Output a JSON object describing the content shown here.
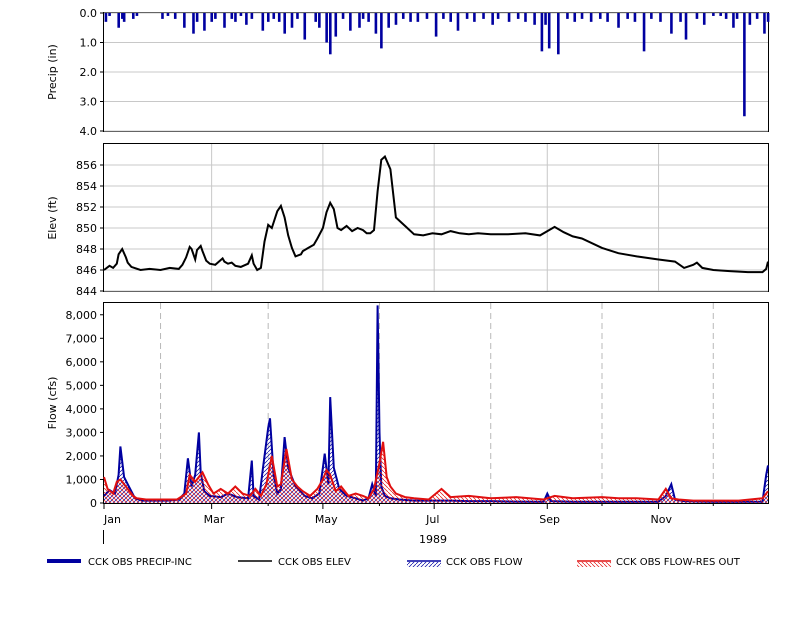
{
  "chart_data": [
    {
      "type": "bar",
      "ylabel": "Precip (in)",
      "ylim": [
        0,
        4
      ],
      "y_inverted": true,
      "yticks": [
        "0.0",
        "1.0",
        "2.0",
        "3.0",
        "4.0"
      ],
      "color": "#0000a0",
      "series": [
        {
          "name": "CCK OBS PRECIP-INC",
          "x": [
            "1989-01-02",
            "1989-01-04",
            "1989-01-09",
            "1989-01-11",
            "1989-01-12",
            "1989-01-17",
            "1989-01-19",
            "1989-02-02",
            "1989-02-05",
            "1989-02-09",
            "1989-02-14",
            "1989-02-19",
            "1989-02-21",
            "1989-02-25",
            "1989-03-01",
            "1989-03-03",
            "1989-03-08",
            "1989-03-12",
            "1989-03-14",
            "1989-03-17",
            "1989-03-20",
            "1989-03-23",
            "1989-03-29",
            "1989-04-01",
            "1989-04-04",
            "1989-04-07",
            "1989-04-10",
            "1989-04-14",
            "1989-04-17",
            "1989-04-21",
            "1989-04-27",
            "1989-04-29",
            "1989-05-03",
            "1989-05-05",
            "1989-05-08",
            "1989-05-12",
            "1989-05-16",
            "1989-05-21",
            "1989-05-23",
            "1989-05-26",
            "1989-05-30",
            "1989-06-02",
            "1989-06-06",
            "1989-06-10",
            "1989-06-14",
            "1989-06-18",
            "1989-06-22",
            "1989-06-27",
            "1989-07-02",
            "1989-07-06",
            "1989-07-10",
            "1989-07-14",
            "1989-07-19",
            "1989-07-23",
            "1989-07-28",
            "1989-08-02",
            "1989-08-05",
            "1989-08-11",
            "1989-08-16",
            "1989-08-20",
            "1989-08-25",
            "1989-08-29",
            "1989-08-31",
            "1989-09-02",
            "1989-09-07",
            "1989-09-12",
            "1989-09-16",
            "1989-09-20",
            "1989-09-25",
            "1989-09-30",
            "1989-10-04",
            "1989-10-10",
            "1989-10-15",
            "1989-10-19",
            "1989-10-24",
            "1989-10-28",
            "1989-11-02",
            "1989-11-08",
            "1989-11-13",
            "1989-11-16",
            "1989-11-22",
            "1989-11-26",
            "1989-12-01",
            "1989-12-05",
            "1989-12-08",
            "1989-12-12",
            "1989-12-14",
            "1989-12-18",
            "1989-12-21",
            "1989-12-25",
            "1989-12-29",
            "1989-12-31"
          ],
          "values": [
            0.3,
            0.1,
            0.5,
            0.2,
            0.3,
            0.2,
            0.1,
            0.2,
            0.1,
            0.2,
            0.5,
            0.7,
            0.3,
            0.6,
            0.3,
            0.2,
            0.5,
            0.2,
            0.3,
            0.1,
            0.4,
            0.2,
            0.6,
            0.3,
            0.2,
            0.3,
            0.7,
            0.5,
            0.2,
            0.9,
            0.3,
            0.5,
            1.0,
            1.4,
            0.8,
            0.2,
            0.6,
            0.5,
            0.2,
            0.3,
            0.7,
            1.2,
            0.5,
            0.4,
            0.2,
            0.3,
            0.3,
            0.2,
            0.8,
            0.2,
            0.3,
            0.6,
            0.2,
            0.3,
            0.2,
            0.4,
            0.2,
            0.3,
            0.2,
            0.3,
            0.4,
            1.3,
            0.4,
            1.2,
            1.4,
            0.2,
            0.3,
            0.2,
            0.3,
            0.2,
            0.3,
            0.5,
            0.2,
            0.3,
            1.3,
            0.2,
            0.3,
            0.7,
            0.3,
            0.9,
            0.2,
            0.4,
            0.1,
            0.1,
            0.2,
            0.5,
            0.2,
            3.5,
            0.4,
            0.2,
            0.7,
            0.3
          ]
        }
      ]
    },
    {
      "type": "line",
      "ylabel": "Elev (ft)",
      "ylim": [
        844,
        858
      ],
      "yticks": [
        "844",
        "846",
        "848",
        "850",
        "852",
        "854",
        "856"
      ],
      "series": [
        {
          "name": "CCK OBS ELEV",
          "color": "#000000",
          "x": [
            "1989-01-01",
            "1989-01-04",
            "1989-01-06",
            "1989-01-08",
            "1989-01-09",
            "1989-01-11",
            "1989-01-13",
            "1989-01-14",
            "1989-01-16",
            "1989-01-21",
            "1989-01-26",
            "1989-02-01",
            "1989-02-06",
            "1989-02-11",
            "1989-02-13",
            "1989-02-15",
            "1989-02-17",
            "1989-02-18",
            "1989-02-20",
            "1989-02-21",
            "1989-02-23",
            "1989-02-24",
            "1989-02-26",
            "1989-02-28",
            "1989-03-03",
            "1989-03-05",
            "1989-03-07",
            "1989-03-08",
            "1989-03-10",
            "1989-03-12",
            "1989-03-14",
            "1989-03-17",
            "1989-03-21",
            "1989-03-23",
            "1989-03-24",
            "1989-03-26",
            "1989-03-28",
            "1989-03-30",
            "1989-04-01",
            "1989-04-03",
            "1989-04-06",
            "1989-04-08",
            "1989-04-10",
            "1989-04-12",
            "1989-04-14",
            "1989-04-16",
            "1989-04-19",
            "1989-04-20",
            "1989-04-23",
            "1989-04-26",
            "1989-04-28",
            "1989-05-01",
            "1989-05-03",
            "1989-05-05",
            "1989-05-07",
            "1989-05-09",
            "1989-05-11",
            "1989-05-14",
            "1989-05-17",
            "1989-05-20",
            "1989-05-23",
            "1989-05-25",
            "1989-05-27",
            "1989-05-29",
            "1989-05-31",
            "1989-06-02",
            "1989-06-04",
            "1989-06-07",
            "1989-06-10",
            "1989-06-15",
            "1989-06-20",
            "1989-06-25",
            "1989-06-30",
            "1989-07-05",
            "1989-07-10",
            "1989-07-15",
            "1989-07-20",
            "1989-07-25",
            "1989-08-01",
            "1989-08-10",
            "1989-08-20",
            "1989-08-28",
            "1989-09-02",
            "1989-09-05",
            "1989-09-10",
            "1989-09-15",
            "1989-09-20",
            "1989-10-01",
            "1989-10-10",
            "1989-10-20",
            "1989-11-01",
            "1989-11-10",
            "1989-11-15",
            "1989-11-20",
            "1989-11-22",
            "1989-11-25",
            "1989-12-01",
            "1989-12-10",
            "1989-12-20",
            "1989-12-28",
            "1989-12-30",
            "1989-12-31"
          ],
          "values": [
            846.0,
            846.4,
            846.2,
            846.6,
            847.5,
            848.0,
            847.2,
            846.7,
            846.3,
            846.0,
            846.1,
            846.0,
            846.2,
            846.1,
            846.5,
            847.2,
            848.2,
            848.0,
            847.0,
            847.9,
            848.3,
            847.8,
            846.9,
            846.6,
            846.5,
            846.8,
            847.1,
            846.8,
            846.6,
            846.7,
            846.4,
            846.3,
            846.6,
            847.4,
            846.6,
            846.0,
            846.2,
            848.7,
            850.3,
            850.0,
            851.6,
            852.1,
            851.0,
            849.3,
            848.1,
            847.3,
            847.5,
            847.8,
            848.1,
            848.4,
            849.0,
            850.0,
            851.5,
            852.4,
            851.8,
            850.0,
            849.8,
            850.2,
            849.7,
            850.0,
            849.8,
            849.5,
            849.5,
            849.8,
            853.5,
            856.5,
            856.8,
            855.6,
            851.0,
            850.2,
            849.4,
            849.3,
            849.5,
            849.4,
            849.7,
            849.5,
            849.4,
            849.5,
            849.4,
            849.4,
            849.5,
            849.3,
            849.8,
            850.1,
            849.6,
            849.2,
            849.0,
            848.1,
            847.6,
            847.3,
            847.0,
            846.8,
            846.2,
            846.5,
            846.7,
            846.2,
            846.0,
            845.9,
            845.8,
            845.8,
            846.1,
            846.8
          ]
        }
      ]
    },
    {
      "type": "line",
      "ylabel": "Flow (cfs)",
      "xlabel": "1989",
      "ylim": [
        0,
        8500
      ],
      "yticks": [
        "0",
        "1,000",
        "2,000",
        "3,000",
        "4,000",
        "5,000",
        "6,000",
        "7,000",
        "8,000"
      ],
      "xticks": [
        "Jan",
        "Mar",
        "May",
        "Jul",
        "Sep",
        "Nov"
      ],
      "series": [
        {
          "name": "CCK OBS FLOW",
          "color": "#0000a0",
          "x": [
            "1989-01-01",
            "1989-01-04",
            "1989-01-07",
            "1989-01-09",
            "1989-01-10",
            "1989-01-12",
            "1989-01-14",
            "1989-01-18",
            "1989-01-22",
            "1989-01-28",
            "1989-02-05",
            "1989-02-11",
            "1989-02-14",
            "1989-02-16",
            "1989-02-18",
            "1989-02-20",
            "1989-02-22",
            "1989-02-23",
            "1989-02-25",
            "1989-02-28",
            "1989-03-06",
            "1989-03-10",
            "1989-03-15",
            "1989-03-21",
            "1989-03-23",
            "1989-03-24",
            "1989-03-27",
            "1989-03-29",
            "1989-04-01",
            "1989-04-02",
            "1989-04-04",
            "1989-04-06",
            "1989-04-08",
            "1989-04-10",
            "1989-04-12",
            "1989-04-16",
            "1989-04-21",
            "1989-04-25",
            "1989-04-29",
            "1989-05-01",
            "1989-05-02",
            "1989-05-04",
            "1989-05-05",
            "1989-05-07",
            "1989-05-10",
            "1989-05-14",
            "1989-05-19",
            "1989-05-23",
            "1989-05-26",
            "1989-05-28",
            "1989-05-30",
            "1989-05-31",
            "1989-06-01",
            "1989-06-02",
            "1989-06-04",
            "1989-06-07",
            "1989-06-12",
            "1989-06-20",
            "1989-07-01",
            "1989-07-10",
            "1989-07-20",
            "1989-08-01",
            "1989-08-15",
            "1989-08-30",
            "1989-09-01",
            "1989-09-03",
            "1989-09-15",
            "1989-10-01",
            "1989-10-15",
            "1989-11-01",
            "1989-11-05",
            "1989-11-08",
            "1989-11-10",
            "1989-11-15",
            "1989-12-01",
            "1989-12-15",
            "1989-12-28",
            "1989-12-30",
            "1989-12-31"
          ],
          "values": [
            300,
            550,
            400,
            1200,
            2400,
            1100,
            800,
            200,
            100,
            100,
            100,
            150,
            400,
            1900,
            700,
            1200,
            3000,
            1300,
            500,
            300,
            250,
            400,
            250,
            200,
            1800,
            300,
            150,
            1400,
            3200,
            3600,
            1200,
            400,
            600,
            2800,
            1500,
            700,
            300,
            200,
            400,
            1500,
            2100,
            800,
            4500,
            1500,
            600,
            300,
            200,
            100,
            200,
            800,
            300,
            8400,
            3000,
            700,
            300,
            200,
            150,
            100,
            100,
            100,
            80,
            80,
            60,
            50,
            400,
            80,
            50,
            50,
            50,
            50,
            300,
            800,
            150,
            80,
            50,
            50,
            60,
            1200,
            1600
          ]
        },
        {
          "name": "CCK OBS FLOW-RES OUT",
          "color": "#e01010",
          "x": [
            "1989-01-01",
            "1989-01-03",
            "1989-01-06",
            "1989-01-08",
            "1989-01-10",
            "1989-01-12",
            "1989-01-14",
            "1989-01-17",
            "1989-01-19",
            "1989-01-24",
            "1989-02-01",
            "1989-02-10",
            "1989-02-15",
            "1989-02-17",
            "1989-02-20",
            "1989-02-24",
            "1989-02-27",
            "1989-03-02",
            "1989-03-06",
            "1989-03-10",
            "1989-03-14",
            "1989-03-18",
            "1989-03-22",
            "1989-03-25",
            "1989-03-28",
            "1989-03-31",
            "1989-04-03",
            "1989-04-06",
            "1989-04-08",
            "1989-04-11",
            "1989-04-14",
            "1989-04-17",
            "1989-04-20",
            "1989-04-24",
            "1989-04-28",
            "1989-05-01",
            "1989-05-03",
            "1989-05-05",
            "1989-05-08",
            "1989-05-11",
            "1989-05-15",
            "1989-05-19",
            "1989-05-23",
            "1989-05-26",
            "1989-05-29",
            "1989-06-01",
            "1989-06-03",
            "1989-06-05",
            "1989-06-07",
            "1989-06-10",
            "1989-06-15",
            "1989-06-20",
            "1989-06-28",
            "1989-07-05",
            "1989-07-10",
            "1989-07-20",
            "1989-08-01",
            "1989-08-15",
            "1989-08-30",
            "1989-09-05",
            "1989-09-15",
            "1989-10-01",
            "1989-10-10",
            "1989-10-20",
            "1989-11-01",
            "1989-11-05",
            "1989-11-08",
            "1989-11-12",
            "1989-11-20",
            "1989-12-01",
            "1989-12-15",
            "1989-12-28",
            "1989-12-31"
          ],
          "values": [
            1100,
            600,
            400,
            900,
            1000,
            800,
            600,
            300,
            200,
            150,
            150,
            150,
            400,
            1200,
            900,
            1300,
            800,
            400,
            600,
            400,
            700,
            400,
            300,
            600,
            300,
            800,
            2000,
            700,
            800,
            2300,
            1000,
            700,
            500,
            300,
            600,
            1000,
            1400,
            1200,
            500,
            700,
            300,
            400,
            300,
            200,
            600,
            1700,
            2600,
            1100,
            700,
            400,
            250,
            200,
            150,
            600,
            250,
            300,
            200,
            250,
            150,
            300,
            200,
            250,
            200,
            200,
            150,
            600,
            200,
            150,
            100,
            100,
            100,
            200,
            500
          ]
        }
      ]
    }
  ],
  "legend": {
    "items": [
      {
        "label": "CCK OBS PRECIP-INC",
        "style": "thick-line",
        "color": "#0000a0"
      },
      {
        "label": "CCK OBS ELEV",
        "style": "thin-line",
        "color": "#000000"
      },
      {
        "label": "CCK OBS FLOW",
        "style": "hatched-line",
        "color": "#0000a0"
      },
      {
        "label": "CCK OBS FLOW-RES OUT",
        "style": "hatched-line",
        "color": "#e01010"
      }
    ]
  }
}
